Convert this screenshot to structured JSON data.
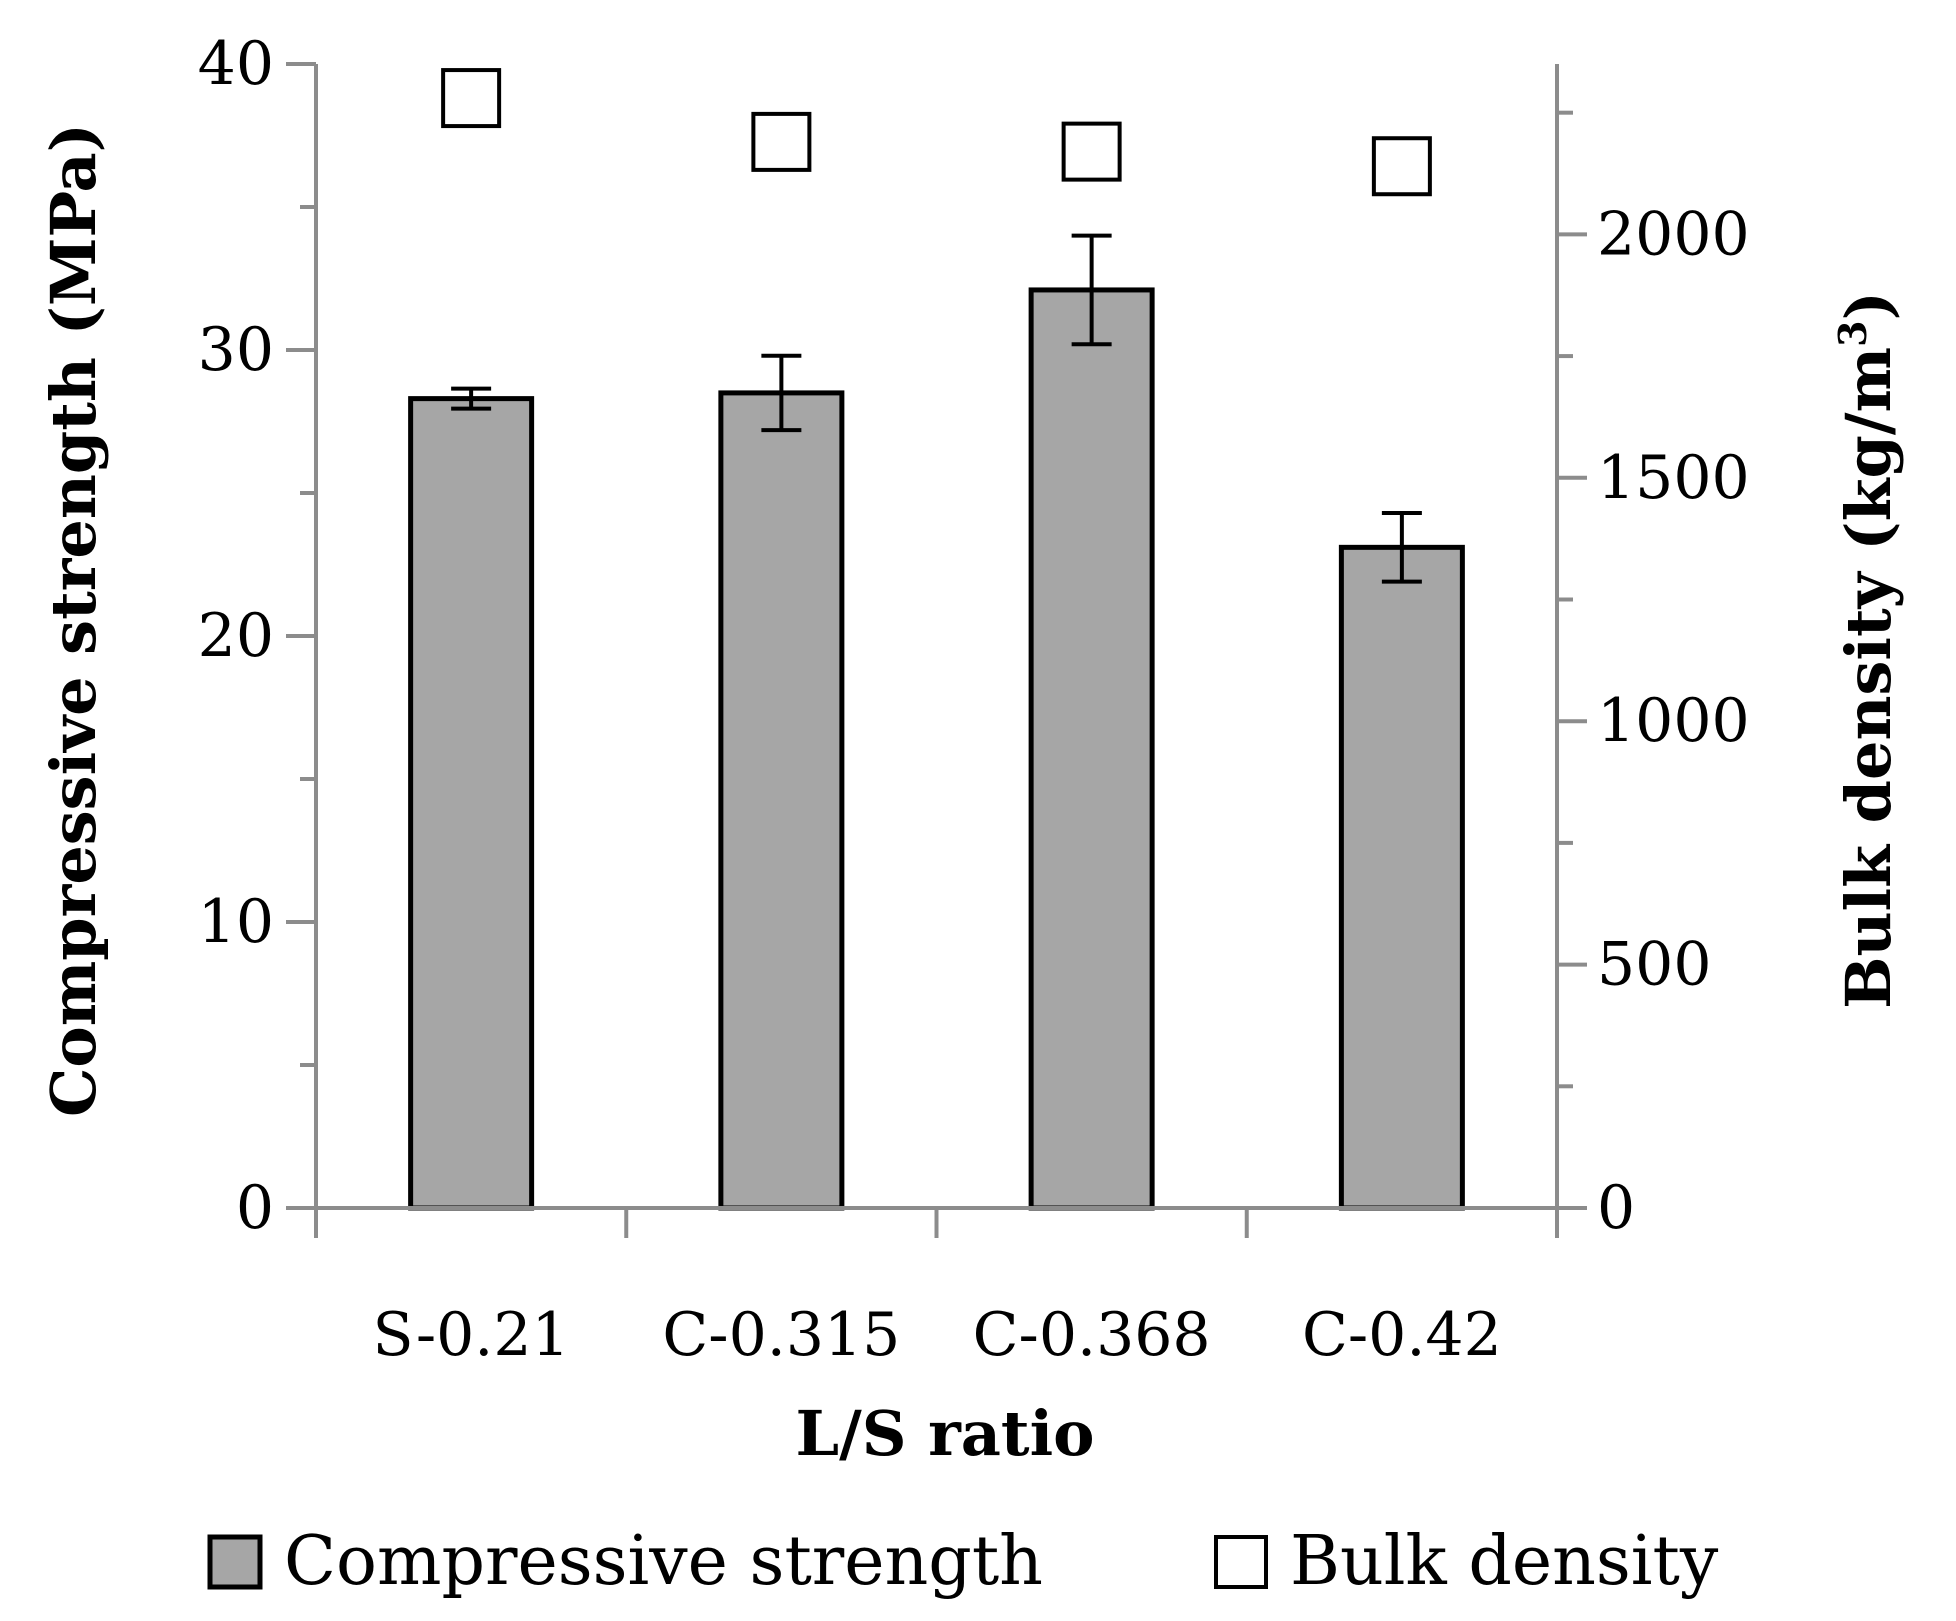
{
  "chart_data": {
    "type": "bar",
    "title": "",
    "xlabel": "L/S ratio",
    "ylabel": "Compressive strength (MPa)",
    "y2label_prefix": "Bulk density (kg/m",
    "y2label_sup": "3",
    "y2label_suffix": ")",
    "categories": [
      "S-0.21",
      "C-0.315",
      "C-0.368",
      "C-0.42"
    ],
    "ylim": [
      0,
      40
    ],
    "y_ticks": [
      "0",
      "10",
      "20",
      "30",
      "40"
    ],
    "y2lim": [
      0,
      2350
    ],
    "y2_ticks": [
      "0",
      "500",
      "1000",
      "1500",
      "2000"
    ],
    "grid": false,
    "legend_position": "bottom",
    "colors": {
      "bar_fill": "#a6a6a6",
      "bar_stroke": "#000000",
      "axis": "#8c8c8c",
      "marker_fill": "#ffffff"
    },
    "series": [
      {
        "name": "Compressive strength",
        "axis": "left",
        "kind": "bar",
        "values": [
          28.3,
          28.5,
          32.1,
          23.1
        ],
        "errors": [
          0.35,
          1.3,
          1.9,
          1.2
        ]
      },
      {
        "name": "Bulk density",
        "axis": "right",
        "kind": "marker",
        "marker": "open-square",
        "values": [
          2280,
          2190,
          2170,
          2140
        ]
      }
    ]
  }
}
